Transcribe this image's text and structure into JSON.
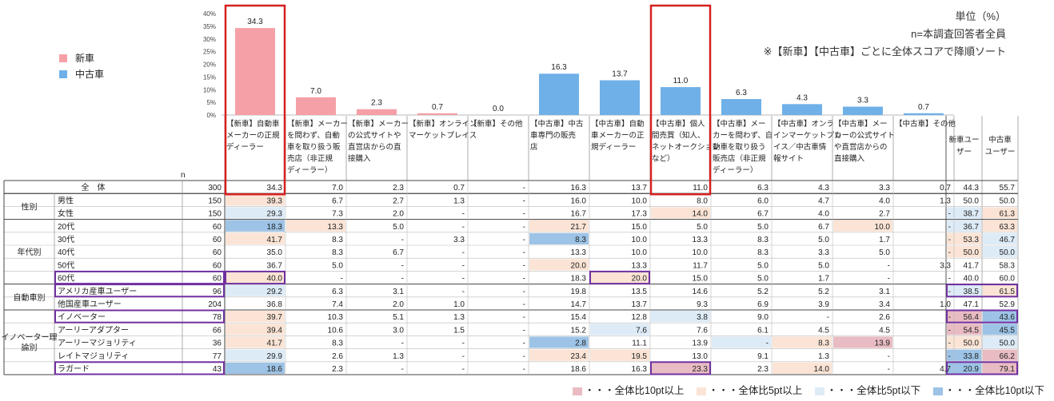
{
  "notes": {
    "unit": "単位（%）",
    "sample": "n=本調査回答者全員",
    "sort": "※【新車】【中古車】ごとに全体スコアで降順ソート"
  },
  "legend": [
    {
      "label": "新車",
      "color": "#f4a0a6"
    },
    {
      "label": "中古車",
      "color": "#6fb0e8"
    }
  ],
  "n_header": "n",
  "chart_data": {
    "type": "bar",
    "ylim": [
      0,
      40
    ],
    "yticks": [
      "0%",
      "5%",
      "10%",
      "15%",
      "20%",
      "25%",
      "30%",
      "35%",
      "40%"
    ],
    "categories": [
      "【新車】自動車メーカーの正規ディーラー",
      "【新車】メーカーを問わず、自動車を取り扱う販売店（非正規ディーラー）",
      "【新車】メーカーの公式サイトや直営店からの直接購入",
      "【新車】オンラインマーケットプレイス",
      "【新車】その他",
      "【中古車】中古車専門の販売店",
      "【中古車】自動車メーカーの正規ディーラー",
      "【中古車】個人間売買（知人、ネットオークションなど）",
      "【中古車】メーカーを問わず、自動車を取り扱う販売店（非正規ディーラー）",
      "【中古車】オンラインマーケットプレイス／中古車情報サイト",
      "【中古車】メーカーの公式サイトや直営店からの直接購入",
      "【中古車】その他"
    ],
    "header_lines": [
      [
        "【新車】自動車",
        "メーカーの正規",
        "ディーラー"
      ],
      [
        "【新車】メーカー",
        "を問わず、自動",
        "車を取り扱う販",
        "売店（非正規",
        "ディーラー）"
      ],
      [
        "【新車】メーカー",
        "の公式サイトや",
        "直営店からの直",
        "接購入"
      ],
      [
        "【新車】オンライン",
        "マーケットプレイス"
      ],
      [
        "【新車】その他"
      ],
      [
        "【中古車】中古",
        "車専門の販売",
        "店"
      ],
      [
        "【中古車】自動",
        "車メーカーの正",
        "規ディーラー"
      ],
      [
        "【中古車】個人",
        "間売買（知人、",
        "ネットオークション",
        "など）"
      ],
      [
        "【中古車】メー",
        "カーを問わず、自",
        "動車を取り扱う",
        "販売店（非正規",
        "ディーラー）"
      ],
      [
        "【中古車】オンラ",
        "インマーケットプレ",
        "イス／中古車情",
        "報サイト"
      ],
      [
        "【中古車】メー",
        "カーの公式サイト",
        "や直営店からの",
        "直接購入"
      ],
      [
        "【中古車】その他"
      ]
    ],
    "series": [
      {
        "name": "新車",
        "color": "#f4a0a6",
        "indices": [
          0,
          1,
          2,
          3,
          4
        ]
      },
      {
        "name": "中古車",
        "color": "#6fb0e8",
        "indices": [
          5,
          6,
          7,
          8,
          9,
          10,
          11
        ]
      }
    ],
    "values": [
      34.3,
      7.0,
      2.3,
      0.7,
      0.0,
      16.3,
      13.7,
      11.0,
      6.3,
      4.3,
      3.3,
      0.7
    ],
    "value_labels": [
      "34.3",
      "7.0",
      "2.3",
      "0.7",
      "0.0",
      "16.3",
      "13.7",
      "11.0",
      "6.3",
      "4.3",
      "3.3",
      "0.7"
    ],
    "highlighted": [
      0,
      7
    ]
  },
  "table": {
    "extra_headers": [
      [
        "新車ユー",
        "ザー"
      ],
      [
        "中古車",
        "ユーザー"
      ]
    ],
    "groups": [
      {
        "label": "",
        "rows": [
          0
        ]
      },
      {
        "label": "性別",
        "rows": [
          1,
          2
        ]
      },
      {
        "label": "年代別",
        "rows": [
          3,
          4,
          5,
          6,
          7
        ]
      },
      {
        "label": "自動車別",
        "rows": [
          8,
          9
        ]
      },
      {
        "label": "イノベーター理論別",
        "label_lines": [
          "イノベーター理",
          "論別"
        ],
        "rows": [
          10,
          11,
          12,
          13,
          14
        ]
      }
    ],
    "rows": [
      {
        "label": "全　体",
        "n": "300",
        "cells": [
          "34.3",
          "7.0",
          "2.3",
          "0.7",
          "-",
          "16.3",
          "13.7",
          "11.0",
          "6.3",
          "4.3",
          "3.3",
          "0.7"
        ],
        "users": [
          "44.3",
          "55.7"
        ],
        "is_total": true
      },
      {
        "label": "男性",
        "n": "150",
        "cells": [
          "39.3",
          "6.7",
          "2.7",
          "1.3",
          "-",
          "16.0",
          "10.0",
          "8.0",
          "6.0",
          "4.7",
          "4.0",
          "1.3"
        ],
        "users": [
          "50.0",
          "50.0"
        ]
      },
      {
        "label": "女性",
        "n": "150",
        "cells": [
          "29.3",
          "7.3",
          "2.0",
          "-",
          "-",
          "16.7",
          "17.3",
          "14.0",
          "6.7",
          "4.0",
          "2.7",
          "-"
        ],
        "users": [
          "38.7",
          "61.3"
        ]
      },
      {
        "label": "20代",
        "n": "60",
        "cells": [
          "18.3",
          "13.3",
          "5.0",
          "-",
          "-",
          "21.7",
          "15.0",
          "5.0",
          "5.0",
          "6.7",
          "10.0",
          "-"
        ],
        "users": [
          "36.7",
          "63.3"
        ]
      },
      {
        "label": "30代",
        "n": "60",
        "cells": [
          "41.7",
          "8.3",
          "-",
          "3.3",
          "-",
          "8.3",
          "10.0",
          "13.3",
          "8.3",
          "5.0",
          "1.7",
          "-"
        ],
        "users": [
          "53.3",
          "46.7"
        ]
      },
      {
        "label": "40代",
        "n": "60",
        "cells": [
          "35.0",
          "8.3",
          "6.7",
          "-",
          "-",
          "13.3",
          "10.0",
          "10.0",
          "8.3",
          "3.3",
          "5.0",
          "-"
        ],
        "users": [
          "50.0",
          "50.0"
        ]
      },
      {
        "label": "50代",
        "n": "60",
        "cells": [
          "36.7",
          "5.0",
          "-",
          "-",
          "-",
          "20.0",
          "13.3",
          "11.7",
          "5.0",
          "5.0",
          "-",
          "3.3"
        ],
        "users": [
          "41.7",
          "58.3"
        ]
      },
      {
        "label": "60代",
        "n": "60",
        "cells": [
          "40.0",
          "-",
          "-",
          "-",
          "-",
          "18.3",
          "20.0",
          "15.0",
          "5.0",
          "1.7",
          "-",
          "-"
        ],
        "users": [
          "40.0",
          "60.0"
        ]
      },
      {
        "label": "アメリカ産車ユーザー",
        "n": "96",
        "cells": [
          "29.2",
          "6.3",
          "3.1",
          "-",
          "-",
          "19.8",
          "13.5",
          "14.6",
          "5.2",
          "5.2",
          "3.1",
          "-"
        ],
        "users": [
          "38.5",
          "61.5"
        ]
      },
      {
        "label": "他国産車ユーザー",
        "n": "204",
        "cells": [
          "36.8",
          "7.4",
          "2.0",
          "1.0",
          "-",
          "14.7",
          "13.7",
          "9.3",
          "6.9",
          "3.9",
          "3.4",
          "1.0"
        ],
        "users": [
          "47.1",
          "52.9"
        ]
      },
      {
        "label": "イノベーター",
        "n": "78",
        "cells": [
          "39.7",
          "10.3",
          "5.1",
          "1.3",
          "-",
          "15.4",
          "12.8",
          "3.8",
          "9.0",
          "-",
          "2.6",
          "-"
        ],
        "users": [
          "56.4",
          "43.6"
        ]
      },
      {
        "label": "アーリーアダプター",
        "n": "66",
        "cells": [
          "39.4",
          "10.6",
          "3.0",
          "1.5",
          "-",
          "15.2",
          "7.6",
          "7.6",
          "6.1",
          "4.5",
          "4.5",
          "-"
        ],
        "users": [
          "54.5",
          "45.5"
        ]
      },
      {
        "label": "アーリーマジョリティ",
        "n": "36",
        "cells": [
          "41.7",
          "8.3",
          "-",
          "-",
          "-",
          "2.8",
          "11.1",
          "13.9",
          "-",
          "8.3",
          "13.9",
          "-"
        ],
        "users": [
          "50.0",
          "50.0"
        ]
      },
      {
        "label": "レイトマジョリティ",
        "n": "77",
        "cells": [
          "29.9",
          "2.6",
          "1.3",
          "-",
          "-",
          "23.4",
          "19.5",
          "13.0",
          "9.1",
          "1.3",
          "-",
          "-"
        ],
        "users": [
          "33.8",
          "66.2"
        ]
      },
      {
        "label": "ラガード",
        "n": "43",
        "cells": [
          "18.6",
          "2.3",
          "-",
          "-",
          "-",
          "18.6",
          "16.3",
          "23.3",
          "2.3",
          "14.0",
          "-",
          "4.7"
        ],
        "users": [
          "20.9",
          "79.1"
        ]
      }
    ],
    "cell_shading": [
      {
        "row": 1,
        "col": 0,
        "level": 1
      },
      {
        "row": 2,
        "col": 0,
        "level": -1
      },
      {
        "row": 2,
        "col": 7,
        "level": 1
      },
      {
        "row": 3,
        "col": 0,
        "level": -2
      },
      {
        "row": 3,
        "col": 1,
        "level": 1
      },
      {
        "row": 3,
        "col": 5,
        "level": 1
      },
      {
        "row": 3,
        "col": 10,
        "level": 1
      },
      {
        "row": 4,
        "col": 0,
        "level": 1
      },
      {
        "row": 4,
        "col": 5,
        "level": -2
      },
      {
        "row": 6,
        "col": 5,
        "level": 1
      },
      {
        "row": 7,
        "col": 0,
        "level": 1
      },
      {
        "row": 7,
        "col": 6,
        "level": 1
      },
      {
        "row": 8,
        "col": 0,
        "level": -1
      },
      {
        "row": 10,
        "col": 0,
        "level": 1
      },
      {
        "row": 10,
        "col": 7,
        "level": -1
      },
      {
        "row": 11,
        "col": 0,
        "level": 1
      },
      {
        "row": 11,
        "col": 6,
        "level": -1
      },
      {
        "row": 12,
        "col": 0,
        "level": 1
      },
      {
        "row": 12,
        "col": 5,
        "level": -2
      },
      {
        "row": 12,
        "col": 8,
        "level": -1
      },
      {
        "row": 12,
        "col": 9,
        "level": 1
      },
      {
        "row": 12,
        "col": 10,
        "level": 2
      },
      {
        "row": 13,
        "col": 0,
        "level": -1
      },
      {
        "row": 13,
        "col": 5,
        "level": 1
      },
      {
        "row": 13,
        "col": 6,
        "level": 1
      },
      {
        "row": 14,
        "col": 0,
        "level": -2
      },
      {
        "row": 14,
        "col": 7,
        "level": 2
      },
      {
        "row": 14,
        "col": 9,
        "level": 1
      }
    ],
    "user_shading": [
      {
        "row": 2,
        "col": 0,
        "level": -1
      },
      {
        "row": 2,
        "col": 1,
        "level": 1
      },
      {
        "row": 3,
        "col": 0,
        "level": -1
      },
      {
        "row": 3,
        "col": 1,
        "level": 1
      },
      {
        "row": 4,
        "col": 0,
        "level": 1
      },
      {
        "row": 4,
        "col": 1,
        "level": -1
      },
      {
        "row": 5,
        "col": 0,
        "level": 1
      },
      {
        "row": 5,
        "col": 1,
        "level": -1
      },
      {
        "row": 8,
        "col": 0,
        "level": -1
      },
      {
        "row": 8,
        "col": 1,
        "level": 1
      },
      {
        "row": 10,
        "col": 0,
        "level": 2
      },
      {
        "row": 10,
        "col": 1,
        "level": -2
      },
      {
        "row": 11,
        "col": 0,
        "level": 2
      },
      {
        "row": 11,
        "col": 1,
        "level": -2
      },
      {
        "row": 12,
        "col": 0,
        "level": 1
      },
      {
        "row": 12,
        "col": 1,
        "level": -1
      },
      {
        "row": 13,
        "col": 0,
        "level": -2
      },
      {
        "row": 13,
        "col": 1,
        "level": 2
      },
      {
        "row": 14,
        "col": 0,
        "level": -2
      },
      {
        "row": 14,
        "col": 1,
        "level": 2
      }
    ],
    "outlined_rows": [
      7,
      8,
      10,
      14
    ],
    "outlined_cells": [
      {
        "row": 7,
        "col": 0
      },
      {
        "row": 7,
        "col": 6
      },
      {
        "row": 14,
        "col": 7
      }
    ],
    "outlined_user_rows": [
      8,
      10,
      14
    ]
  },
  "shade_colors": {
    "2": "#e8bcc2",
    "1": "#fbe4d5",
    "-1": "#ddebf7",
    "-2": "#9dc3e6"
  },
  "bottom_legend": [
    {
      "label": "・・・全体比10pt以上",
      "color": "#e8bcc2"
    },
    {
      "label": "・・・全体比5pt以上",
      "color": "#fbe4d5"
    },
    {
      "label": "・・・全体比5pt以下",
      "color": "#ddebf7"
    },
    {
      "label": "・・・全体比10pt以下",
      "color": "#9dc3e6"
    }
  ]
}
